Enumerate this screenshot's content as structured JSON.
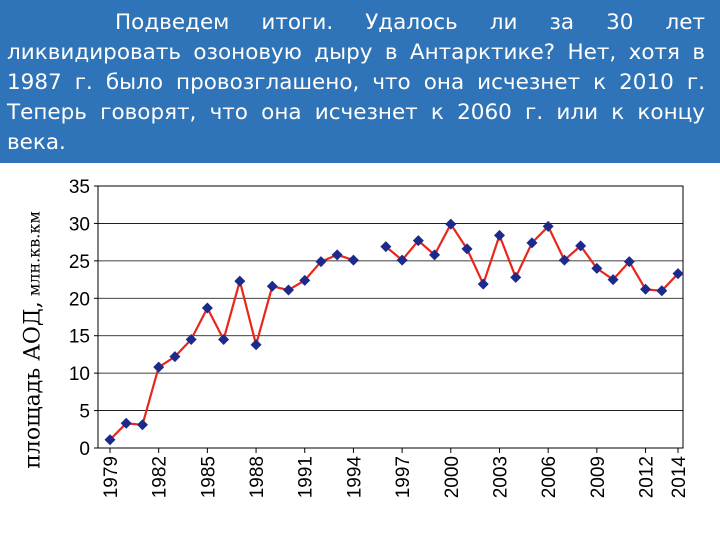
{
  "slide": {
    "text": "Подведем итоги. Удалось ли за 30 лет ликвидировать озоновую дыру в Антарктике? Нет, хотя в 1987 г. было провозглашено, что она исчезнет к 2010 г. Теперь говорят, что она исчезнет к 2060 г. или к концу века."
  },
  "colors": {
    "banner": "#2f74b8",
    "line": "#e8261c",
    "marker": "#1c2a8c"
  },
  "chart_data": {
    "type": "line",
    "ylabel_main": "площадь АОД,",
    "ylabel_unit": " млн.кв.км",
    "ylim": [
      0,
      35
    ],
    "yticks": [
      0,
      5,
      10,
      15,
      20,
      25,
      30,
      35
    ],
    "xlim": [
      1979,
      2014
    ],
    "xticks": [
      1979,
      1982,
      1985,
      1988,
      1991,
      1994,
      1997,
      2000,
      2003,
      2006,
      2009,
      2012,
      2014
    ],
    "grid": "horizontal",
    "x": [
      1979,
      1980,
      1981,
      1982,
      1983,
      1984,
      1985,
      1986,
      1987,
      1988,
      1989,
      1990,
      1991,
      1992,
      1993,
      1994,
      1996,
      1997,
      1998,
      1999,
      2000,
      2001,
      2002,
      2003,
      2004,
      2005,
      2006,
      2007,
      2008,
      2009,
      2010,
      2011,
      2012,
      2013,
      2014
    ],
    "values": [
      1.1,
      3.3,
      3.1,
      10.8,
      12.2,
      14.5,
      18.7,
      14.5,
      22.3,
      13.8,
      21.6,
      21.1,
      22.4,
      24.9,
      25.8,
      25.1,
      26.9,
      25.1,
      27.7,
      25.8,
      29.9,
      26.6,
      21.9,
      28.4,
      22.8,
      27.4,
      29.6,
      25.1,
      27.0,
      24.0,
      22.5,
      24.9,
      21.2,
      21.0,
      23.3
    ]
  }
}
